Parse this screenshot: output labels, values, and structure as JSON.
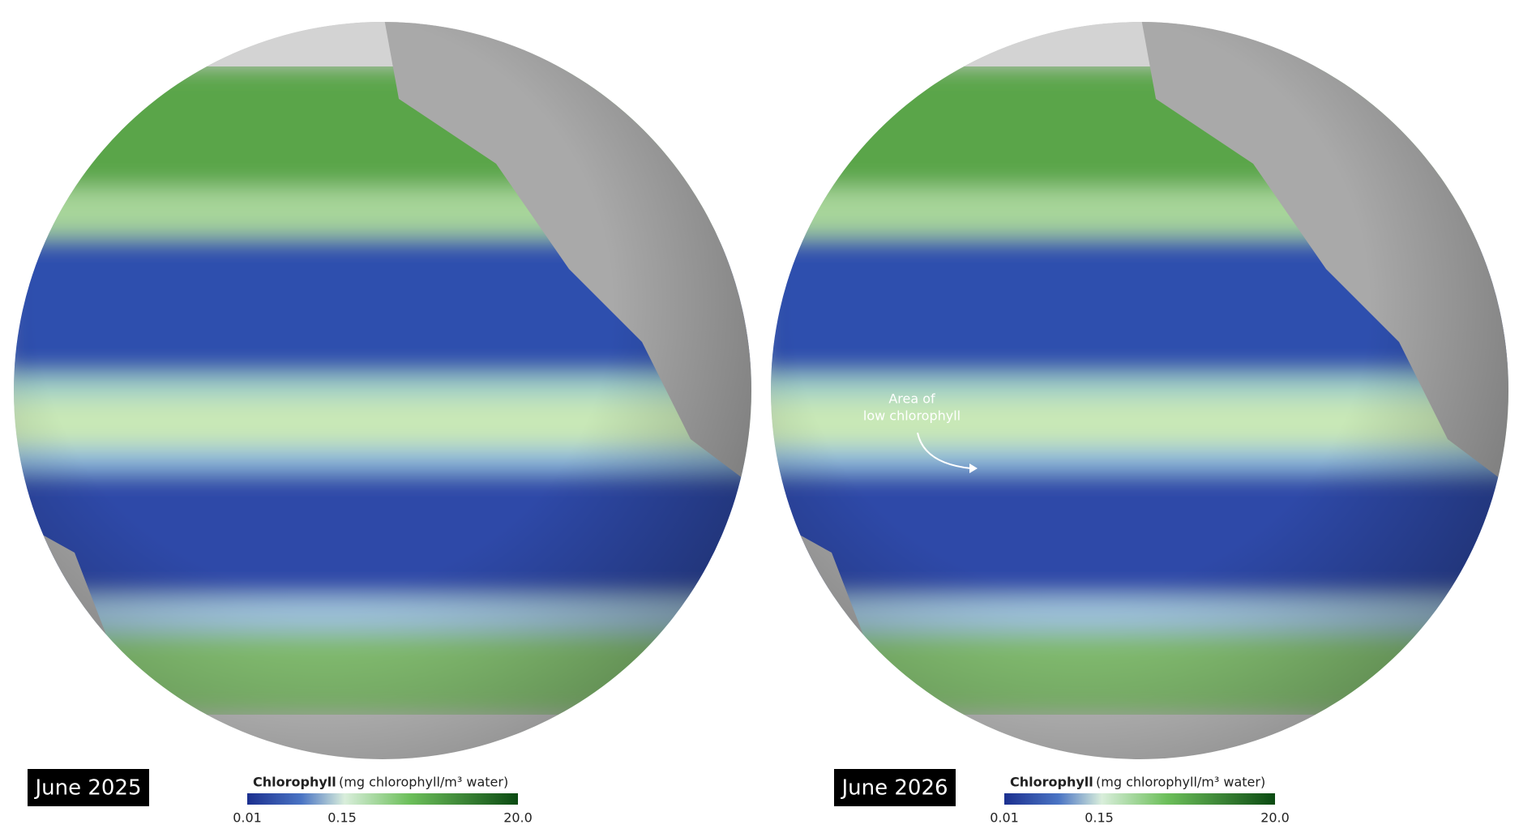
{
  "panels": [
    {
      "label": "June 2025",
      "legend": {
        "title": "Chlorophyll",
        "units": "(mg chlorophyll/m³ water)",
        "ticks": [
          "0.01",
          "0.15",
          "20.0"
        ]
      }
    },
    {
      "label": "June 2026",
      "legend": {
        "title": "Chlorophyll",
        "units": "(mg chlorophyll/m³ water)",
        "ticks": [
          "0.01",
          "0.15",
          "20.0"
        ]
      },
      "annotation": [
        "Area of",
        "low chlorophyll"
      ]
    }
  ]
}
